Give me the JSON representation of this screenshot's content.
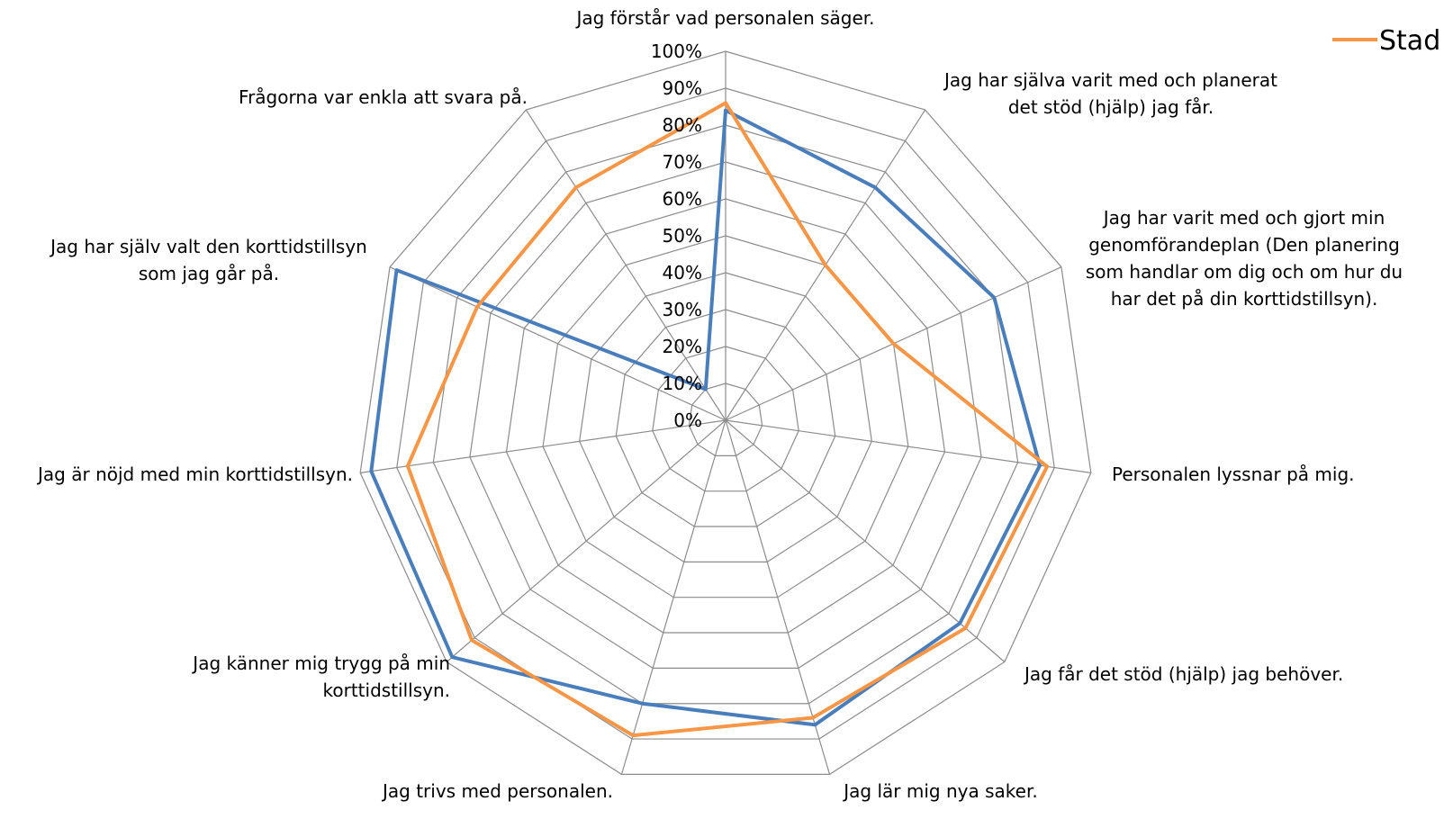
{
  "chart_data": {
    "type": "radar",
    "categories": [
      "Jag förstår vad personalen säger.",
      "Jag har själva varit med och planerat det stöd (hjälp) jag får.",
      "Jag har varit med och gjort min genomförandeplan (Den planering som handlar om dig och om hur du har det på din korttidstillsyn).",
      "Personalen lyssnar på mig.",
      "Jag får det stöd (hjälp) jag behöver.",
      "Jag lär mig nya saker.",
      "Jag trivs med personalen.",
      "Jag känner mig trygg på min korttidstillsyn.",
      "Jag är nöjd med min korttidstillsyn.",
      "Jag har själv valt den korttidstillsyn som jag går på.",
      "Frågorna var enkla att svara på."
    ],
    "category_lines": [
      [
        "Jag förstår vad personalen säger."
      ],
      [
        "Jag har själva varit med och planerat",
        "det stöd (hjälp) jag får."
      ],
      [
        "Jag har varit med och gjort min",
        "genomförandeplan (Den planering",
        "som handlar om dig och om hur du",
        "har det på din korttidstillsyn)."
      ],
      [
        "Personalen lyssnar på mig."
      ],
      [
        "Jag får det stöd (hjälp) jag behöver."
      ],
      [
        "Jag lär mig nya saker."
      ],
      [
        "Jag trivs med personalen."
      ],
      [
        "Jag känner mig trygg på min",
        "korttidstillsyn."
      ],
      [
        "Jag är nöjd med min korttidstillsyn."
      ],
      [
        "Jag har själv valt den korttidstillsyn",
        "som jag går på."
      ],
      [
        "Frågorna var enkla att svara på."
      ]
    ],
    "tick_labels": [
      "0%",
      "10%",
      "20%",
      "30%",
      "40%",
      "50%",
      "60%",
      "70%",
      "80%",
      "90%",
      "100%"
    ],
    "ylim": [
      0,
      100
    ],
    "series": [
      {
        "color": "#4a7ebb",
        "values": [
          84,
          75,
          80,
          86,
          84,
          86,
          80,
          98,
          97,
          98,
          10
        ]
      },
      {
        "name": "Stad",
        "color": "#f79646",
        "values": [
          86,
          50,
          50,
          88,
          86,
          84,
          89,
          91,
          87,
          74,
          75
        ]
      }
    ],
    "legend": "top-right",
    "grid": true
  }
}
